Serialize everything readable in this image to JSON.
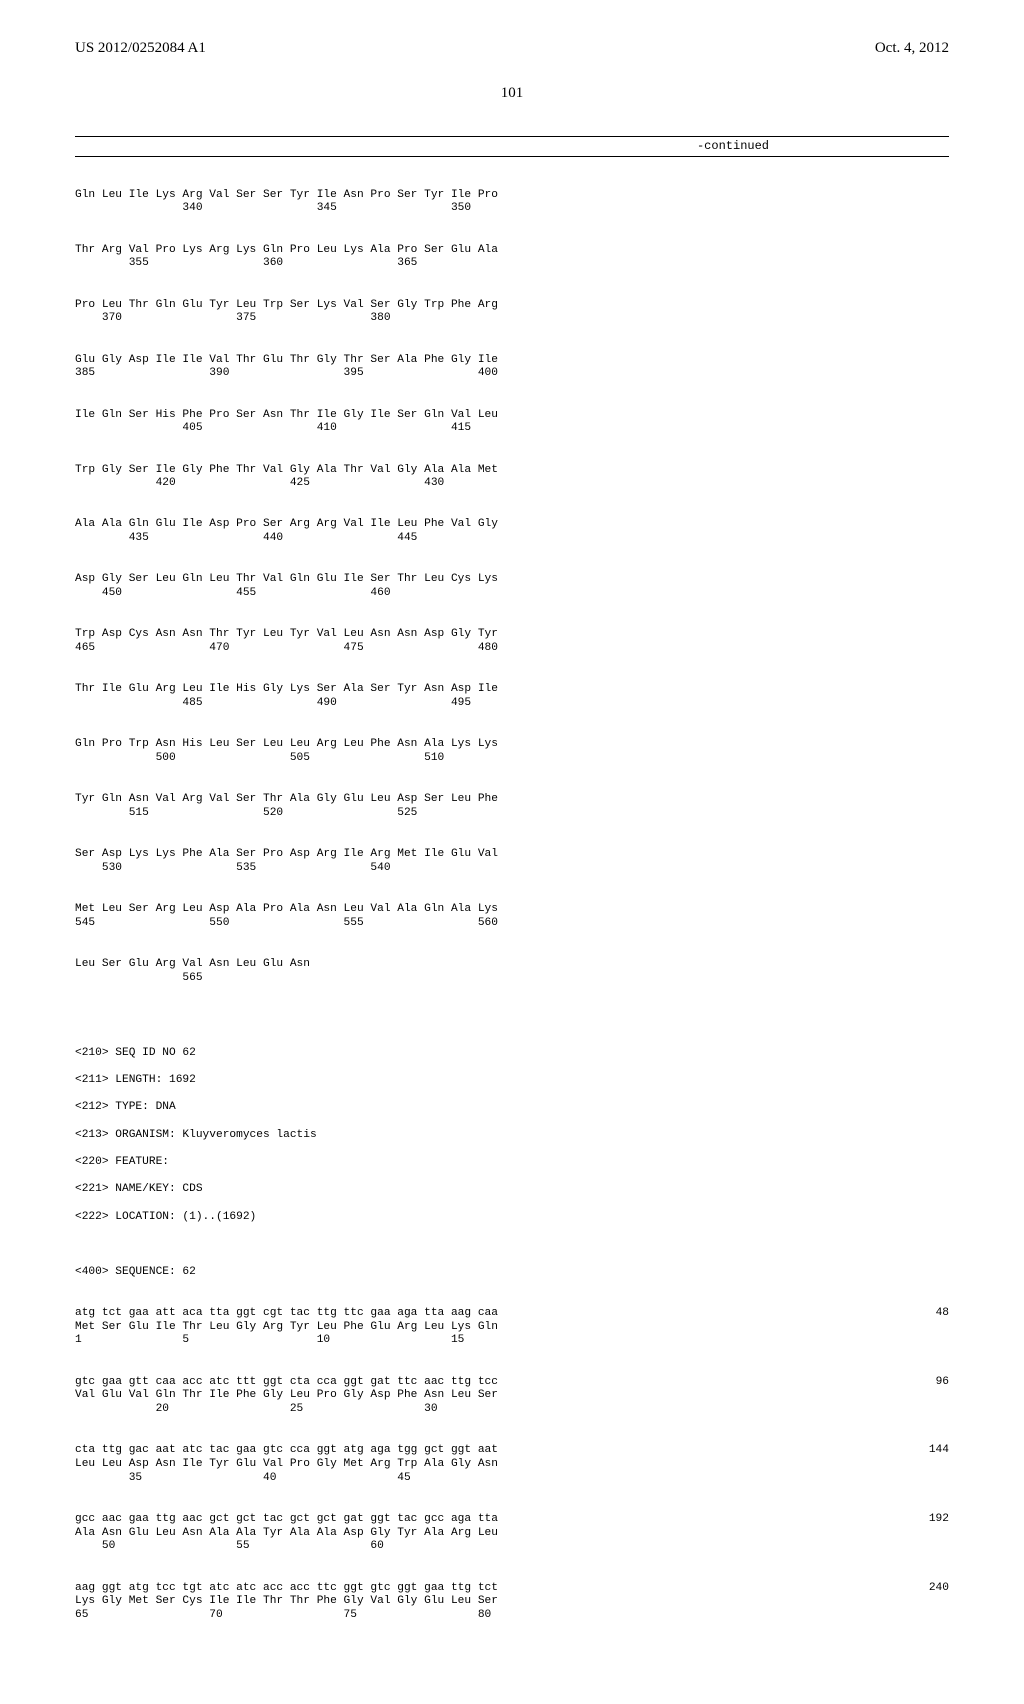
{
  "header": {
    "publication_number": "US 2012/0252084 A1",
    "publication_date": "Oct. 4, 2012"
  },
  "page_number": "101",
  "continued_label": "-continued",
  "protein_seq": {
    "rows": [
      {
        "aa": "Gln Leu Ile Lys Arg Val Ser Ser Tyr Ile Asn Pro Ser Tyr Ile Pro",
        "pos": "                340                 345                 350"
      },
      {
        "aa": "Thr Arg Val Pro Lys Arg Lys Gln Pro Leu Lys Ala Pro Ser Glu Ala",
        "pos": "        355                 360                 365"
      },
      {
        "aa": "Pro Leu Thr Gln Glu Tyr Leu Trp Ser Lys Val Ser Gly Trp Phe Arg",
        "pos": "    370                 375                 380"
      },
      {
        "aa": "Glu Gly Asp Ile Ile Val Thr Glu Thr Gly Thr Ser Ala Phe Gly Ile",
        "pos": "385                 390                 395                 400"
      },
      {
        "aa": "Ile Gln Ser His Phe Pro Ser Asn Thr Ile Gly Ile Ser Gln Val Leu",
        "pos": "                405                 410                 415"
      },
      {
        "aa": "Trp Gly Ser Ile Gly Phe Thr Val Gly Ala Thr Val Gly Ala Ala Met",
        "pos": "            420                 425                 430"
      },
      {
        "aa": "Ala Ala Gln Glu Ile Asp Pro Ser Arg Arg Val Ile Leu Phe Val Gly",
        "pos": "        435                 440                 445"
      },
      {
        "aa": "Asp Gly Ser Leu Gln Leu Thr Val Gln Glu Ile Ser Thr Leu Cys Lys",
        "pos": "    450                 455                 460"
      },
      {
        "aa": "Trp Asp Cys Asn Asn Thr Tyr Leu Tyr Val Leu Asn Asn Asp Gly Tyr",
        "pos": "465                 470                 475                 480"
      },
      {
        "aa": "Thr Ile Glu Arg Leu Ile His Gly Lys Ser Ala Ser Tyr Asn Asp Ile",
        "pos": "                485                 490                 495"
      },
      {
        "aa": "Gln Pro Trp Asn His Leu Ser Leu Leu Arg Leu Phe Asn Ala Lys Lys",
        "pos": "            500                 505                 510"
      },
      {
        "aa": "Tyr Gln Asn Val Arg Val Ser Thr Ala Gly Glu Leu Asp Ser Leu Phe",
        "pos": "        515                 520                 525"
      },
      {
        "aa": "Ser Asp Lys Lys Phe Ala Ser Pro Asp Arg Ile Arg Met Ile Glu Val",
        "pos": "    530                 535                 540"
      },
      {
        "aa": "Met Leu Ser Arg Leu Asp Ala Pro Ala Asn Leu Val Ala Gln Ala Lys",
        "pos": "545                 550                 555                 560"
      },
      {
        "aa": "Leu Ser Glu Arg Val Asn Leu Glu Asn",
        "pos": "                565"
      }
    ]
  },
  "meta": {
    "lines": [
      "<210> SEQ ID NO 62",
      "<211> LENGTH: 1692",
      "<212> TYPE: DNA",
      "<213> ORGANISM: Kluyveromyces lactis",
      "<220> FEATURE:",
      "<221> NAME/KEY: CDS",
      "<222> LOCATION: (1)..(1692)"
    ],
    "sequence_label": "<400> SEQUENCE: 62"
  },
  "dna_seq": {
    "entries": [
      {
        "dna": "atg tct gaa att aca tta ggt cgt tac ttg ttc gaa aga tta aag caa",
        "aa": "Met Ser Glu Ile Thr Leu Gly Arg Tyr Leu Phe Glu Arg Leu Lys Gln",
        "pos": "1               5                   10                  15",
        "num": "48"
      },
      {
        "dna": "gtc gaa gtt caa acc atc ttt ggt cta cca ggt gat ttc aac ttg tcc",
        "aa": "Val Glu Val Gln Thr Ile Phe Gly Leu Pro Gly Asp Phe Asn Leu Ser",
        "pos": "            20                  25                  30",
        "num": "96"
      },
      {
        "dna": "cta ttg gac aat atc tac gaa gtc cca ggt atg aga tgg gct ggt aat",
        "aa": "Leu Leu Asp Asn Ile Tyr Glu Val Pro Gly Met Arg Trp Ala Gly Asn",
        "pos": "        35                  40                  45",
        "num": "144"
      },
      {
        "dna": "gcc aac gaa ttg aac gct gct tac gct gct gat ggt tac gcc aga tta",
        "aa": "Ala Asn Glu Leu Asn Ala Ala Tyr Ala Ala Asp Gly Tyr Ala Arg Leu",
        "pos": "    50                  55                  60",
        "num": "192"
      },
      {
        "dna": "aag ggt atg tcc tgt atc atc acc acc ttc ggt gtc ggt gaa ttg tct",
        "aa": "Lys Gly Met Ser Cys Ile Ile Thr Thr Phe Gly Val Gly Glu Leu Ser",
        "pos": "65                  70                  75                  80",
        "num": "240"
      }
    ]
  }
}
